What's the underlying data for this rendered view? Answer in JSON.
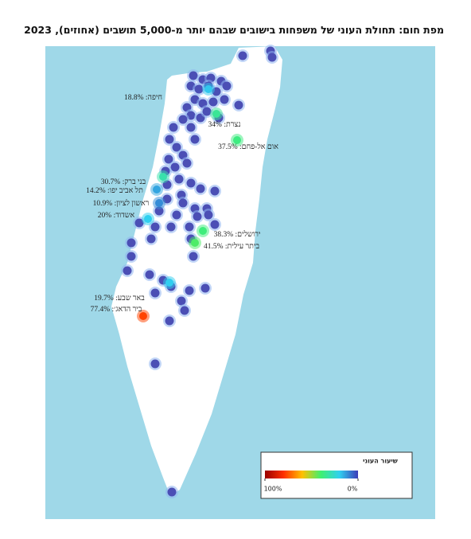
{
  "title": "מפת חום: תחולת העוני של משפחות בישובים שבהם יותר מ-5,000 תושבים (אחוזים), 2023",
  "cities": [
    {
      "label": "חיפה: 18.8%",
      "rate": 18.8
    },
    {
      "label": "נצרת: 34%",
      "rate": 34
    },
    {
      "label": "אום אל-פחם: 37.5%",
      "rate": 37.5
    },
    {
      "label": "בני ברק: 30.7%",
      "rate": 30.7
    },
    {
      "label": "תל אביב יפו: 14.2%",
      "rate": 14.2
    },
    {
      "label": "ראשון לציון: 10.9%",
      "rate": 10.9
    },
    {
      "label": "אשדוד: 20%",
      "rate": 20
    },
    {
      "label": "ירושלים: 38.3%",
      "rate": 38.3
    },
    {
      "label": "ביתר עילית: 41.5%",
      "rate": 41.5
    },
    {
      "label": "באר שבע: 19.7%",
      "rate": 19.7
    },
    {
      "label": "ביר הדאג׳: 77.4%",
      "rate": 77.4
    }
  ],
  "legend": {
    "title": "שיעור העוני",
    "ticks": [
      {
        "value": 100,
        "label": "100%"
      },
      {
        "value": 0,
        "label": "0%"
      }
    ],
    "colors": [
      "#9a0000",
      "#ff3000",
      "#ffc000",
      "#40f070",
      "#30d0f0",
      "#3c3cb8"
    ]
  }
}
